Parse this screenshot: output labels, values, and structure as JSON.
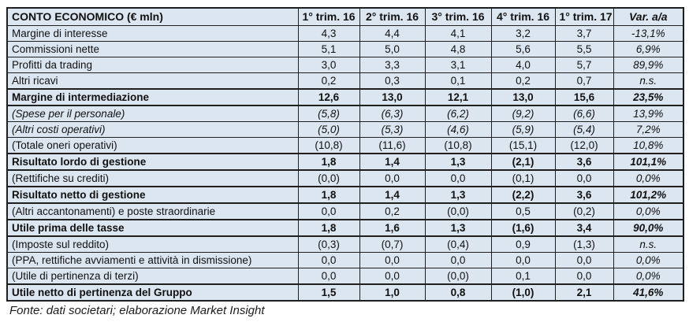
{
  "chart_data": {
    "type": "table",
    "title": "CONTO ECONOMICO (€ mln)",
    "columns": [
      "1° trim. 16",
      "2° trim. 16",
      "3° trim. 16",
      "4° trim. 16",
      "1° trim. 17",
      "Var. a/a"
    ],
    "shaded_value_columns": [
      0,
      4
    ],
    "rows": [
      {
        "label": "Margine di interesse",
        "values": [
          "4,3",
          "4,4",
          "4,1",
          "3,2",
          "3,7"
        ],
        "var": "-13,1%",
        "style": "normal"
      },
      {
        "label": "Commissioni nette",
        "values": [
          "5,1",
          "5,0",
          "4,8",
          "5,6",
          "5,5"
        ],
        "var": "6,9%",
        "style": "normal"
      },
      {
        "label": "Profitti da trading",
        "values": [
          "3,0",
          "3,3",
          "3,1",
          "4,0",
          "5,7"
        ],
        "var": "89,9%",
        "style": "normal"
      },
      {
        "label": "Altri ricavi",
        "values": [
          "0,2",
          "0,3",
          "0,1",
          "0,2",
          "0,7"
        ],
        "var": "n.s.",
        "style": "normal"
      },
      {
        "label": "Margine di intermediazione",
        "values": [
          "12,6",
          "13,0",
          "12,1",
          "13,0",
          "15,6"
        ],
        "var": "23,5%",
        "style": "bold"
      },
      {
        "label": "(Spese per il personale)",
        "values": [
          "(5,8)",
          "(6,3)",
          "(6,2)",
          "(9,2)",
          "(6,6)"
        ],
        "var": "13,9%",
        "style": "italic"
      },
      {
        "label": "(Altri costi operativi)",
        "values": [
          "(5,0)",
          "(5,3)",
          "(4,6)",
          "(5,9)",
          "(5,4)"
        ],
        "var": "7,2%",
        "style": "italic"
      },
      {
        "label": "(Totale oneri operativi)",
        "values": [
          "(10,8)",
          "(11,6)",
          "(10,8)",
          "(15,1)",
          "(12,0)"
        ],
        "var": "10,8%",
        "style": "normal"
      },
      {
        "label": "Risultato lordo di gestione",
        "values": [
          "1,8",
          "1,4",
          "1,3",
          "(2,1)",
          "3,6"
        ],
        "var": "101,1%",
        "style": "bold"
      },
      {
        "label": "(Rettifiche su crediti)",
        "values": [
          "(0,0)",
          "0,0",
          "0,0",
          "(0,1)",
          "0,0"
        ],
        "var": "0,0%",
        "style": "normal"
      },
      {
        "label": "Risultato netto di gestione",
        "values": [
          "1,8",
          "1,4",
          "1,3",
          "(2,2)",
          "3,6"
        ],
        "var": "101,2%",
        "style": "bold"
      },
      {
        "label": "(Altri accantonamenti) e poste straordinarie",
        "values": [
          "0,0",
          "0,2",
          "(0,0)",
          "0,5",
          "(0,2)"
        ],
        "var": "0,0%",
        "style": "normal"
      },
      {
        "label": "Utile prima delle tasse",
        "values": [
          "1,8",
          "1,6",
          "1,3",
          "(1,6)",
          "3,4"
        ],
        "var": "90,0%",
        "style": "bold"
      },
      {
        "label": "(Imposte sul reddito)",
        "values": [
          "(0,3)",
          "(0,7)",
          "(0,4)",
          "0,9",
          "(1,3)"
        ],
        "var": "n.s.",
        "style": "normal"
      },
      {
        "label": "(PPA, rettifiche avviamenti e attività in dismissione)",
        "values": [
          "0,0",
          "0,0",
          "0,0",
          "0,0",
          "0,0"
        ],
        "var": "0,0%",
        "style": "normal"
      },
      {
        "label": "(Utile di pertinenza di terzi)",
        "values": [
          "0,0",
          "0,0",
          "(0,0)",
          "0,1",
          "0,0"
        ],
        "var": "0,0%",
        "style": "normal"
      },
      {
        "label": "Utile netto di pertinenza del Gruppo",
        "values": [
          "1,5",
          "1,0",
          "0,8",
          "(1,0)",
          "2,1"
        ],
        "var": "41,6%",
        "style": "bold"
      }
    ]
  },
  "source": {
    "text": "Fonte: dati societari; elaborazione Market Insight"
  },
  "colors": {
    "row_fill": "#dce6f1",
    "alt_fill": "#ffffff",
    "border": "#1f1f1f",
    "text": "#111111"
  }
}
